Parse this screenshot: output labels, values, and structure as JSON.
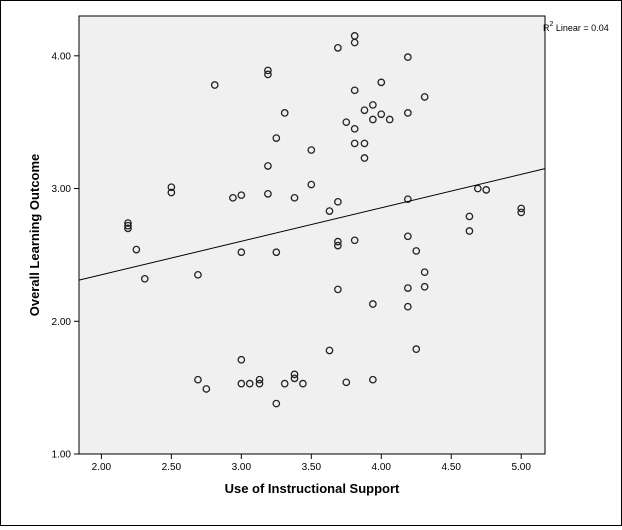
{
  "chart_data": {
    "type": "scatter",
    "title": "",
    "xlabel": "Use of Instructional Support",
    "ylabel": "Overall Learning Outcome",
    "xlim": [
      1.84,
      5.17
    ],
    "ylim": [
      1.0,
      4.3
    ],
    "xticks": [
      2.0,
      2.5,
      3.0,
      3.5,
      4.0,
      4.5,
      5.0
    ],
    "yticks": [
      1.0,
      2.0,
      3.0,
      4.0
    ],
    "x_tick_labels": [
      "2.00",
      "2.50",
      "3.00",
      "3.50",
      "4.00",
      "4.50",
      "5.00"
    ],
    "y_tick_labels": [
      "1.00",
      "2.00",
      "3.00",
      "4.00"
    ],
    "grid": false,
    "background": "#f0f0f0",
    "fit_line": {
      "label_prefix": "R",
      "label_sup": "2",
      "label_suffix": " Linear = 0.04",
      "x": [
        1.84,
        5.17
      ],
      "y": [
        2.31,
        3.15
      ]
    },
    "points": [
      {
        "x": 2.19,
        "y": 2.74
      },
      {
        "x": 2.19,
        "y": 2.72
      },
      {
        "x": 2.19,
        "y": 2.7
      },
      {
        "x": 2.25,
        "y": 2.54
      },
      {
        "x": 2.31,
        "y": 2.32
      },
      {
        "x": 2.5,
        "y": 3.01
      },
      {
        "x": 2.5,
        "y": 2.97
      },
      {
        "x": 2.69,
        "y": 2.35
      },
      {
        "x": 2.69,
        "y": 1.56
      },
      {
        "x": 2.75,
        "y": 1.49
      },
      {
        "x": 2.81,
        "y": 3.78
      },
      {
        "x": 2.94,
        "y": 2.93
      },
      {
        "x": 3.0,
        "y": 2.95
      },
      {
        "x": 3.0,
        "y": 2.52
      },
      {
        "x": 3.0,
        "y": 1.71
      },
      {
        "x": 3.0,
        "y": 1.53
      },
      {
        "x": 3.06,
        "y": 1.53
      },
      {
        "x": 3.13,
        "y": 1.56
      },
      {
        "x": 3.13,
        "y": 1.53
      },
      {
        "x": 3.19,
        "y": 3.89
      },
      {
        "x": 3.19,
        "y": 3.86
      },
      {
        "x": 3.19,
        "y": 3.17
      },
      {
        "x": 3.19,
        "y": 2.96
      },
      {
        "x": 3.25,
        "y": 3.38
      },
      {
        "x": 3.25,
        "y": 2.52
      },
      {
        "x": 3.25,
        "y": 1.38
      },
      {
        "x": 3.31,
        "y": 3.57
      },
      {
        "x": 3.31,
        "y": 1.53
      },
      {
        "x": 3.38,
        "y": 2.93
      },
      {
        "x": 3.38,
        "y": 1.6
      },
      {
        "x": 3.38,
        "y": 1.57
      },
      {
        "x": 3.44,
        "y": 1.53
      },
      {
        "x": 3.5,
        "y": 3.29
      },
      {
        "x": 3.5,
        "y": 3.03
      },
      {
        "x": 3.63,
        "y": 2.83
      },
      {
        "x": 3.63,
        "y": 1.78
      },
      {
        "x": 3.69,
        "y": 4.06
      },
      {
        "x": 3.69,
        "y": 2.9
      },
      {
        "x": 3.69,
        "y": 2.6
      },
      {
        "x": 3.69,
        "y": 2.57
      },
      {
        "x": 3.69,
        "y": 2.24
      },
      {
        "x": 3.75,
        "y": 3.5
      },
      {
        "x": 3.75,
        "y": 1.54
      },
      {
        "x": 3.81,
        "y": 4.15
      },
      {
        "x": 3.81,
        "y": 4.1
      },
      {
        "x": 3.81,
        "y": 3.74
      },
      {
        "x": 3.81,
        "y": 3.45
      },
      {
        "x": 3.81,
        "y": 3.34
      },
      {
        "x": 3.81,
        "y": 2.61
      },
      {
        "x": 3.88,
        "y": 3.59
      },
      {
        "x": 3.88,
        "y": 3.34
      },
      {
        "x": 3.88,
        "y": 3.23
      },
      {
        "x": 3.94,
        "y": 3.63
      },
      {
        "x": 3.94,
        "y": 3.52
      },
      {
        "x": 3.94,
        "y": 2.13
      },
      {
        "x": 3.94,
        "y": 1.56
      },
      {
        "x": 4.0,
        "y": 3.8
      },
      {
        "x": 4.0,
        "y": 3.56
      },
      {
        "x": 4.06,
        "y": 3.52
      },
      {
        "x": 4.19,
        "y": 3.99
      },
      {
        "x": 4.19,
        "y": 3.57
      },
      {
        "x": 4.19,
        "y": 2.92
      },
      {
        "x": 4.19,
        "y": 2.64
      },
      {
        "x": 4.19,
        "y": 2.25
      },
      {
        "x": 4.19,
        "y": 2.11
      },
      {
        "x": 4.25,
        "y": 2.53
      },
      {
        "x": 4.25,
        "y": 1.79
      },
      {
        "x": 4.31,
        "y": 3.69
      },
      {
        "x": 4.31,
        "y": 2.37
      },
      {
        "x": 4.31,
        "y": 2.26
      },
      {
        "x": 4.63,
        "y": 2.79
      },
      {
        "x": 4.63,
        "y": 2.68
      },
      {
        "x": 4.69,
        "y": 3.0
      },
      {
        "x": 4.75,
        "y": 2.99
      },
      {
        "x": 5.0,
        "y": 2.85
      },
      {
        "x": 5.0,
        "y": 2.82
      }
    ]
  }
}
